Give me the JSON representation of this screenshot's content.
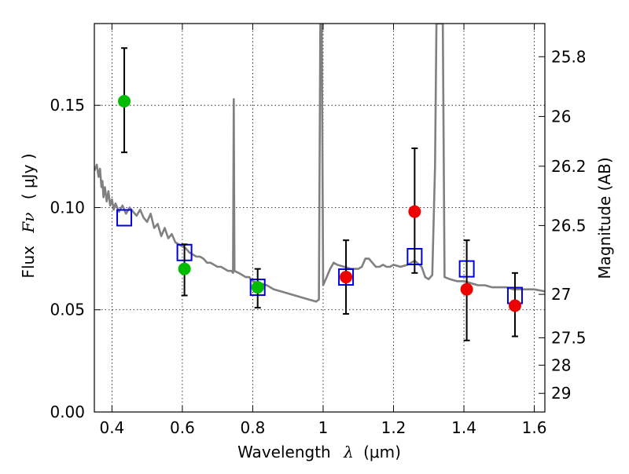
{
  "chart_data": {
    "type": "scatter",
    "title": "",
    "xlabel": "Wavelength",
    "xlabel_symbol": "λ",
    "xlabel_unit": "(μm)",
    "ylabel": "Flux",
    "ylabel_symbol": "Fν",
    "ylabel_unit": "( μJy )",
    "y2label": "Magnitude (AB)",
    "xlim": [
      0.35,
      1.63
    ],
    "ylim": [
      0.0,
      0.19
    ],
    "grid": true,
    "x_ticks": [
      0.4,
      0.6,
      0.8,
      1.0,
      1.2,
      1.4,
      1.6
    ],
    "x_tick_labels": [
      "0.4",
      "0.6",
      "0.8",
      "1",
      "1.2",
      "1.4",
      "1.6"
    ],
    "y_ticks": [
      0.0,
      0.05,
      0.1,
      0.15
    ],
    "y_tick_labels": [
      "0.00",
      "0.05",
      "0.10",
      "0.15"
    ],
    "y2_ticks": [
      {
        "label": "25.8",
        "mag": 25.8
      },
      {
        "label": "26",
        "mag": 26.0
      },
      {
        "label": "26.2",
        "mag": 26.2
      },
      {
        "label": "26.5",
        "mag": 26.5
      },
      {
        "label": "27",
        "mag": 27.0
      },
      {
        "label": "27.5",
        "mag": 27.5
      },
      {
        "label": "28",
        "mag": 28.0
      },
      {
        "label": "29",
        "mag": 29.0
      }
    ],
    "series": [
      {
        "name": "Model spectrum",
        "kind": "line",
        "color": "#808080",
        "points": [
          [
            0.35,
            0.118
          ],
          [
            0.357,
            0.121
          ],
          [
            0.362,
            0.115
          ],
          [
            0.366,
            0.119
          ],
          [
            0.37,
            0.11
          ],
          [
            0.373,
            0.113
          ],
          [
            0.376,
            0.105
          ],
          [
            0.38,
            0.11
          ],
          [
            0.385,
            0.103
          ],
          [
            0.39,
            0.108
          ],
          [
            0.395,
            0.101
          ],
          [
            0.4,
            0.104
          ],
          [
            0.405,
            0.099
          ],
          [
            0.41,
            0.102
          ],
          [
            0.42,
            0.098
          ],
          [
            0.43,
            0.101
          ],
          [
            0.44,
            0.097
          ],
          [
            0.45,
            0.1
          ],
          [
            0.46,
            0.098
          ],
          [
            0.47,
            0.096
          ],
          [
            0.48,
            0.099
          ],
          [
            0.49,
            0.095
          ],
          [
            0.5,
            0.093
          ],
          [
            0.51,
            0.097
          ],
          [
            0.52,
            0.09
          ],
          [
            0.53,
            0.092
          ],
          [
            0.54,
            0.086
          ],
          [
            0.55,
            0.09
          ],
          [
            0.56,
            0.085
          ],
          [
            0.57,
            0.087
          ],
          [
            0.58,
            0.083
          ],
          [
            0.59,
            0.082
          ],
          [
            0.6,
            0.081
          ],
          [
            0.61,
            0.08
          ],
          [
            0.62,
            0.078
          ],
          [
            0.63,
            0.077
          ],
          [
            0.64,
            0.076
          ],
          [
            0.65,
            0.076
          ],
          [
            0.66,
            0.075
          ],
          [
            0.67,
            0.073
          ],
          [
            0.68,
            0.073
          ],
          [
            0.69,
            0.072
          ],
          [
            0.7,
            0.071
          ],
          [
            0.71,
            0.071
          ],
          [
            0.72,
            0.07
          ],
          [
            0.73,
            0.069
          ],
          [
            0.74,
            0.069
          ],
          [
            0.744,
            0.068
          ],
          [
            0.746,
            0.153
          ],
          [
            0.748,
            0.069
          ],
          [
            0.76,
            0.068
          ],
          [
            0.77,
            0.067
          ],
          [
            0.78,
            0.066
          ],
          [
            0.79,
            0.066
          ],
          [
            0.8,
            0.064
          ],
          [
            0.82,
            0.063
          ],
          [
            0.84,
            0.062
          ],
          [
            0.86,
            0.06
          ],
          [
            0.88,
            0.059
          ],
          [
            0.9,
            0.058
          ],
          [
            0.92,
            0.057
          ],
          [
            0.94,
            0.056
          ],
          [
            0.96,
            0.055
          ],
          [
            0.98,
            0.054
          ],
          [
            0.988,
            0.055
          ],
          [
            0.992,
            0.19
          ],
          [
            0.996,
            0.19
          ],
          [
            1.0,
            0.062
          ],
          [
            1.01,
            0.066
          ],
          [
            1.02,
            0.07
          ],
          [
            1.03,
            0.073
          ],
          [
            1.04,
            0.072
          ],
          [
            1.06,
            0.071
          ],
          [
            1.08,
            0.07
          ],
          [
            1.1,
            0.07
          ],
          [
            1.11,
            0.071
          ],
          [
            1.12,
            0.075
          ],
          [
            1.13,
            0.075
          ],
          [
            1.14,
            0.073
          ],
          [
            1.15,
            0.071
          ],
          [
            1.16,
            0.071
          ],
          [
            1.17,
            0.072
          ],
          [
            1.18,
            0.071
          ],
          [
            1.19,
            0.071
          ],
          [
            1.2,
            0.072
          ],
          [
            1.22,
            0.071
          ],
          [
            1.24,
            0.072
          ],
          [
            1.26,
            0.074
          ],
          [
            1.28,
            0.071
          ],
          [
            1.29,
            0.066
          ],
          [
            1.3,
            0.065
          ],
          [
            1.31,
            0.067
          ],
          [
            1.318,
            0.12
          ],
          [
            1.322,
            0.19
          ],
          [
            1.34,
            0.19
          ],
          [
            1.345,
            0.066
          ],
          [
            1.36,
            0.065
          ],
          [
            1.38,
            0.064
          ],
          [
            1.4,
            0.064
          ],
          [
            1.42,
            0.063
          ],
          [
            1.44,
            0.062
          ],
          [
            1.46,
            0.062
          ],
          [
            1.48,
            0.061
          ],
          [
            1.5,
            0.061
          ],
          [
            1.52,
            0.061
          ],
          [
            1.54,
            0.06
          ],
          [
            1.56,
            0.06
          ],
          [
            1.58,
            0.06
          ],
          [
            1.6,
            0.06
          ],
          [
            1.63,
            0.059
          ]
        ]
      },
      {
        "name": "Model photometry",
        "kind": "marker",
        "marker": "open-square",
        "color": "#0000dd",
        "points": [
          [
            0.435,
            0.095
          ],
          [
            0.606,
            0.078
          ],
          [
            0.814,
            0.061
          ],
          [
            1.065,
            0.066
          ],
          [
            1.26,
            0.076
          ],
          [
            1.408,
            0.07
          ],
          [
            1.545,
            0.057
          ]
        ]
      },
      {
        "name": "Observed (green)",
        "kind": "marker",
        "marker": "filled-circle",
        "color": "#00bb00",
        "points": [
          {
            "x": 0.435,
            "y": 0.152,
            "lo": 0.127,
            "hi": 0.178
          },
          {
            "x": 0.606,
            "y": 0.07,
            "lo": 0.057,
            "hi": 0.082
          },
          {
            "x": 0.814,
            "y": 0.061,
            "lo": 0.051,
            "hi": 0.07
          }
        ]
      },
      {
        "name": "Observed (red)",
        "kind": "marker",
        "marker": "filled-circle",
        "color": "#ee0000",
        "points": [
          {
            "x": 1.065,
            "y": 0.066,
            "lo": 0.048,
            "hi": 0.084
          },
          {
            "x": 1.26,
            "y": 0.098,
            "lo": 0.068,
            "hi": 0.129
          },
          {
            "x": 1.408,
            "y": 0.06,
            "lo": 0.035,
            "hi": 0.084
          },
          {
            "x": 1.545,
            "y": 0.052,
            "lo": 0.037,
            "hi": 0.068
          }
        ]
      }
    ]
  }
}
